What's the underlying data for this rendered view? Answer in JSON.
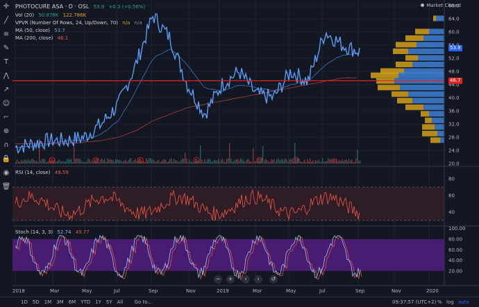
{
  "symbol": {
    "name": "PHOTOCURE ASA · D · OSL",
    "last": "53.9",
    "change": "+0.3 (+0.56%)",
    "status": "Market Closed"
  },
  "indicators": {
    "vol": {
      "label": "Vol (20)",
      "v1": "50.876K",
      "v2": "122.786K"
    },
    "vpvr": {
      "label": "VPVR (Number Of Rows, 24, Up/Down, 70)",
      "v1": "n/a",
      "v2": "n/a"
    },
    "ma50": {
      "label": "MA (50, close)",
      "value": "53.7"
    },
    "ma200": {
      "label": "MA (200, close)",
      "value": "46.1"
    },
    "rsi": {
      "label": "RSI (14, close)",
      "value": "49.59"
    },
    "stoch": {
      "label": "Stoch (14, 3, 3)",
      "v1": "52.74",
      "v2": "49.77"
    }
  },
  "price_axis": {
    "ticks": [
      "68.0",
      "64.0",
      "60.0",
      "56.0",
      "52.0",
      "48.0",
      "44.0",
      "40.0",
      "36.0",
      "32.0",
      "28.0",
      "24.0",
      "20.0"
    ],
    "last_label": "53.9",
    "line_label": "46.7"
  },
  "rsi_axis": {
    "ticks": [
      "80",
      "60",
      "40"
    ]
  },
  "stoch_axis": {
    "ticks": [
      "100.00",
      "80.00",
      "60.00",
      "40.00",
      "20.00"
    ]
  },
  "time_axis": {
    "ticks": [
      "2018",
      "Mar",
      "May",
      "Jul",
      "Sep",
      "Nov",
      "2019",
      "Mar",
      "May",
      "Jul",
      "Sep",
      "Nov",
      "2020"
    ]
  },
  "bottom": {
    "ranges": [
      "1D",
      "5D",
      "1M",
      "3M",
      "6M",
      "YTD",
      "1Y",
      "5Y",
      "All"
    ],
    "goto": "Go to...",
    "time": "09:37:57 (UTC+2)",
    "pct": "%",
    "log": "log",
    "auto": "auto"
  },
  "nav": {
    "zoom_out": "−",
    "zoom_in": "+",
    "back": "‹",
    "fwd": "›",
    "reset": "↺"
  },
  "earnings_marker": "E",
  "tools": [
    "cursor-icon",
    "trend-line-icon",
    "fib-icon",
    "brush-icon",
    "text-icon",
    "pattern-icon",
    "prediction-icon",
    "emoji-icon",
    "ruler-icon",
    "zoom-icon",
    "magnet-icon",
    "lock-icon",
    "eye-icon",
    "trash-icon"
  ],
  "colors": {
    "price_line": "#5b9cf5",
    "ma50": "#3d78c8",
    "ma200": "#b23a3a",
    "red_line": "#e02424",
    "vp_up": "#3f7fd4",
    "vp_down": "#d4a017",
    "rsi_line": "#e0533f",
    "stoch_k": "#8fb4f0",
    "stoch_d": "#e0533f",
    "stoch_band": "#5a1f8c"
  },
  "chart_data": {
    "type": "line",
    "title": "PHOTOCURE ASA · D · OSL",
    "ylim": [
      20,
      68
    ],
    "x": [
      "2018-01",
      "2018-02",
      "2018-03",
      "2018-04",
      "2018-05",
      "2018-06",
      "2018-07",
      "2018-08",
      "2018-09",
      "2018-10",
      "2018-11",
      "2018-12",
      "2019-01",
      "2019-02",
      "2019-03",
      "2019-04",
      "2019-05",
      "2019-06",
      "2019-07",
      "2019-08",
      "2019-09"
    ],
    "series": [
      {
        "name": "",
        "values": [
          25,
          26,
          27,
          27,
          28,
          32,
          38,
          50,
          65,
          58,
          44,
          35,
          44,
          48,
          41,
          40,
          48,
          45,
          60,
          56,
          54
        ]
      },
      {
        "name": "MA (50, close)",
        "values": [
          25,
          25,
          26,
          27,
          27,
          29,
          33,
          42,
          52,
          55,
          50,
          43,
          42,
          44,
          43,
          42,
          44,
          45,
          50,
          53,
          53.7
        ]
      },
      {
        "name": "MA (200, close)",
        "values": [
          26,
          26,
          26,
          26,
          26.5,
          27,
          28,
          30,
          33,
          35,
          37,
          38,
          39,
          40,
          41,
          42,
          43,
          44,
          45,
          46,
          46.1
        ]
      }
    ]
  }
}
